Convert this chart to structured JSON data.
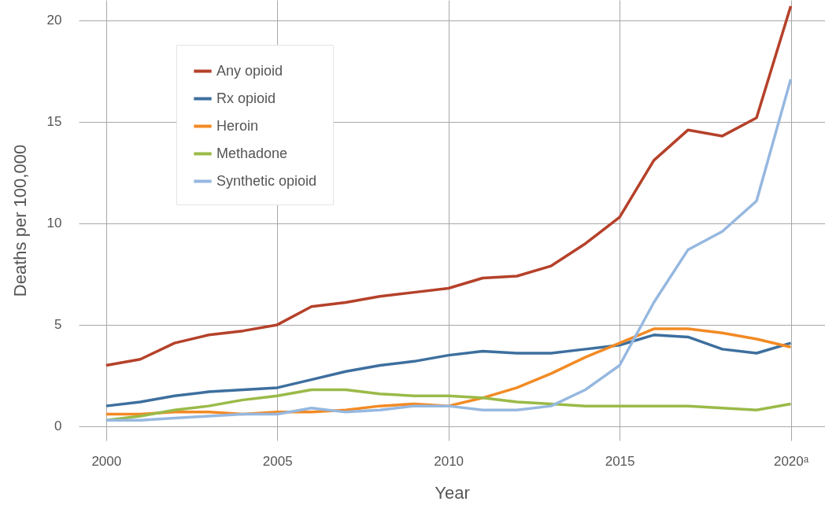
{
  "chart_data": {
    "type": "line",
    "xlabel": "Year",
    "ylabel": "Deaths per 100,000",
    "x": [
      2000,
      2001,
      2002,
      2003,
      2004,
      2005,
      2006,
      2007,
      2008,
      2009,
      2010,
      2011,
      2012,
      2013,
      2014,
      2015,
      2016,
      2017,
      2018,
      2019,
      2020
    ],
    "series": [
      {
        "name": "Any opioid",
        "color": "#b5412a",
        "values": [
          3.0,
          3.3,
          4.1,
          4.5,
          4.7,
          5.0,
          5.9,
          6.1,
          6.4,
          6.6,
          6.8,
          7.3,
          7.4,
          7.9,
          9.0,
          10.3,
          13.1,
          14.6,
          14.3,
          15.2,
          20.7
        ]
      },
      {
        "name": "Rx opioid",
        "color": "#3d6f9e",
        "values": [
          1.0,
          1.2,
          1.5,
          1.7,
          1.8,
          1.9,
          2.3,
          2.7,
          3.0,
          3.2,
          3.5,
          3.7,
          3.6,
          3.6,
          3.8,
          4.0,
          4.5,
          4.4,
          3.8,
          3.6,
          4.1
        ]
      },
      {
        "name": "Heroin",
        "color": "#f28a24",
        "values": [
          0.6,
          0.6,
          0.7,
          0.7,
          0.6,
          0.7,
          0.7,
          0.8,
          1.0,
          1.1,
          1.0,
          1.4,
          1.9,
          2.6,
          3.4,
          4.1,
          4.8,
          4.8,
          4.6,
          4.3,
          3.9
        ]
      },
      {
        "name": "Methadone",
        "color": "#9aba48",
        "values": [
          0.3,
          0.5,
          0.8,
          1.0,
          1.3,
          1.5,
          1.8,
          1.8,
          1.6,
          1.5,
          1.5,
          1.4,
          1.2,
          1.1,
          1.0,
          1.0,
          1.0,
          1.0,
          0.9,
          0.8,
          1.1
        ]
      },
      {
        "name": "Synthetic opioid",
        "color": "#96b8e0",
        "values": [
          0.3,
          0.3,
          0.4,
          0.5,
          0.6,
          0.6,
          0.9,
          0.7,
          0.8,
          1.0,
          1.0,
          0.8,
          0.8,
          1.0,
          1.8,
          3.0,
          6.1,
          8.7,
          9.6,
          11.1,
          17.1
        ]
      }
    ],
    "xlim": [
      1999.2,
      2021
    ],
    "ylim": [
      -0.7,
      21
    ],
    "xticks": [
      2000,
      2005,
      2010,
      2015,
      {
        "value": 2020,
        "label": "2020ᵃ"
      }
    ],
    "yticks": [
      0,
      5,
      10,
      15,
      20
    ],
    "grid": true,
    "legend": "top left"
  }
}
